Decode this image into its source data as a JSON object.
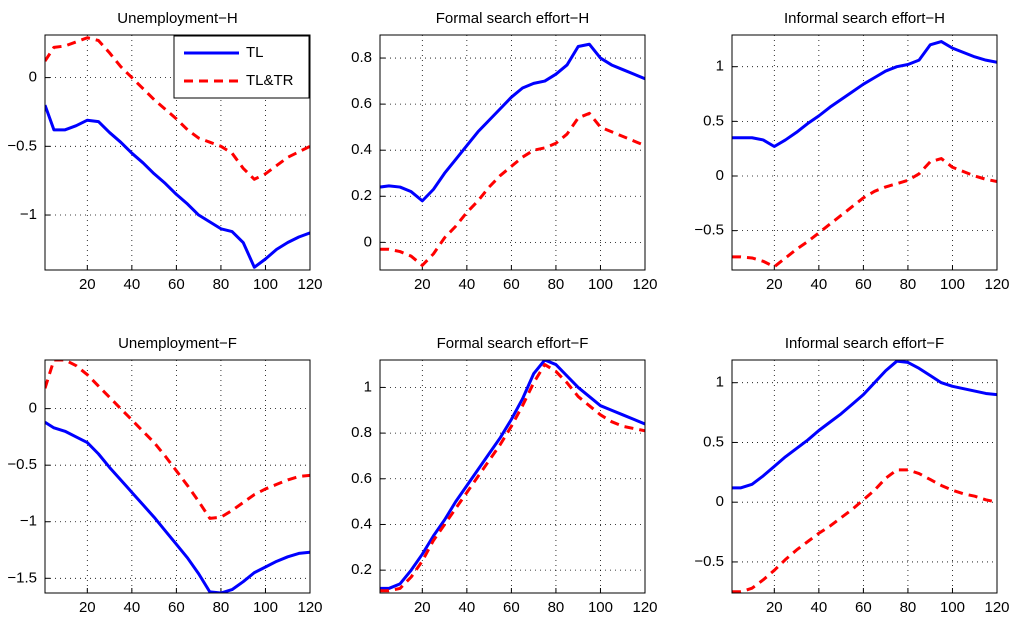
{
  "chart_data": [
    {
      "type": "line",
      "title": "Unemployment−H",
      "x": [
        1,
        5,
        10,
        15,
        20,
        25,
        30,
        35,
        40,
        45,
        50,
        55,
        60,
        65,
        70,
        75,
        80,
        85,
        90,
        95,
        100,
        105,
        110,
        115,
        120
      ],
      "series": [
        {
          "name": "TL",
          "color": "#0000ff",
          "linestyle": "solid",
          "values": [
            -0.2,
            -0.38,
            -0.38,
            -0.35,
            -0.31,
            -0.32,
            -0.4,
            -0.47,
            -0.55,
            -0.62,
            -0.7,
            -0.77,
            -0.85,
            -0.92,
            -1.0,
            -1.05,
            -1.1,
            -1.12,
            -1.2,
            -1.38,
            -1.32,
            -1.25,
            -1.2,
            -1.16,
            -1.13
          ]
        },
        {
          "name": "TL&TR",
          "color": "#ff0000",
          "linestyle": "dashed",
          "values": [
            0.12,
            0.22,
            0.23,
            0.26,
            0.29,
            0.27,
            0.18,
            0.08,
            0.0,
            -0.08,
            -0.16,
            -0.23,
            -0.3,
            -0.38,
            -0.44,
            -0.47,
            -0.5,
            -0.55,
            -0.66,
            -0.74,
            -0.7,
            -0.64,
            -0.58,
            -0.54,
            -0.5
          ]
        }
      ],
      "xlim": [
        1,
        120
      ],
      "xticks": [
        20,
        40,
        60,
        80,
        100,
        120
      ],
      "ylim": [
        -1.4,
        0.31
      ],
      "yticks": [
        {
          "value": -1,
          "label": "−1"
        },
        {
          "value": -0.5,
          "label": "−0.5"
        },
        0
      ],
      "grid": true,
      "legend": "northeast"
    },
    {
      "type": "line",
      "title": "Formal search effort−H",
      "x": [
        1,
        5,
        10,
        15,
        20,
        25,
        30,
        35,
        40,
        45,
        50,
        55,
        60,
        65,
        70,
        75,
        80,
        85,
        90,
        95,
        100,
        105,
        110,
        115,
        120
      ],
      "series": [
        {
          "name": "TL",
          "color": "#0000ff",
          "linestyle": "solid",
          "values": [
            0.24,
            0.245,
            0.24,
            0.22,
            0.18,
            0.23,
            0.3,
            0.36,
            0.42,
            0.48,
            0.53,
            0.58,
            0.63,
            0.67,
            0.69,
            0.7,
            0.73,
            0.77,
            0.85,
            0.86,
            0.8,
            0.77,
            0.75,
            0.73,
            0.71
          ]
        },
        {
          "name": "TL&TR",
          "color": "#ff0000",
          "linestyle": "dashed",
          "values": [
            -0.03,
            -0.03,
            -0.04,
            -0.06,
            -0.1,
            -0.05,
            0.02,
            0.07,
            0.13,
            0.18,
            0.24,
            0.29,
            0.33,
            0.37,
            0.4,
            0.41,
            0.43,
            0.47,
            0.54,
            0.56,
            0.5,
            0.48,
            0.46,
            0.44,
            0.42
          ]
        }
      ],
      "xlim": [
        1,
        120
      ],
      "xticks": [
        20,
        40,
        60,
        80,
        100,
        120
      ],
      "ylim": [
        -0.12,
        0.9
      ],
      "yticks": [
        0,
        0.2,
        0.4,
        0.6,
        0.8
      ],
      "grid": true
    },
    {
      "type": "line",
      "title": "Informal search effort−H",
      "x": [
        1,
        5,
        10,
        15,
        20,
        25,
        30,
        35,
        40,
        45,
        50,
        55,
        60,
        65,
        70,
        75,
        80,
        85,
        90,
        95,
        100,
        105,
        110,
        115,
        120
      ],
      "series": [
        {
          "name": "TL",
          "color": "#0000ff",
          "linestyle": "solid",
          "values": [
            0.35,
            0.35,
            0.35,
            0.33,
            0.27,
            0.33,
            0.4,
            0.48,
            0.55,
            0.63,
            0.7,
            0.77,
            0.84,
            0.9,
            0.96,
            1.0,
            1.02,
            1.06,
            1.2,
            1.23,
            1.17,
            1.13,
            1.09,
            1.06,
            1.04
          ]
        },
        {
          "name": "TL&TR",
          "color": "#ff0000",
          "linestyle": "dashed",
          "values": [
            -0.74,
            -0.74,
            -0.75,
            -0.78,
            -0.83,
            -0.75,
            -0.67,
            -0.6,
            -0.52,
            -0.44,
            -0.36,
            -0.28,
            -0.2,
            -0.14,
            -0.1,
            -0.07,
            -0.04,
            0.02,
            0.13,
            0.16,
            0.08,
            0.04,
            0.0,
            -0.03,
            -0.05
          ]
        }
      ],
      "xlim": [
        1,
        120
      ],
      "xticks": [
        20,
        40,
        60,
        80,
        100,
        120
      ],
      "ylim": [
        -0.86,
        1.29
      ],
      "yticks": [
        {
          "value": -0.5,
          "label": "−0.5"
        },
        0,
        0.5,
        1
      ],
      "grid": true
    },
    {
      "type": "line",
      "title": "Unemployment−F",
      "x": [
        1,
        5,
        10,
        15,
        20,
        25,
        30,
        35,
        40,
        45,
        50,
        55,
        60,
        65,
        70,
        75,
        80,
        85,
        90,
        95,
        100,
        105,
        110,
        115,
        120
      ],
      "series": [
        {
          "name": "TL",
          "color": "#0000ff",
          "linestyle": "solid",
          "values": [
            -0.12,
            -0.17,
            -0.2,
            -0.25,
            -0.3,
            -0.4,
            -0.52,
            -0.63,
            -0.74,
            -0.85,
            -0.96,
            -1.08,
            -1.2,
            -1.32,
            -1.46,
            -1.62,
            -1.63,
            -1.6,
            -1.53,
            -1.45,
            -1.4,
            -1.35,
            -1.31,
            -1.28,
            -1.27
          ]
        },
        {
          "name": "TL&TR",
          "color": "#ff0000",
          "linestyle": "dashed",
          "values": [
            0.18,
            0.43,
            0.43,
            0.38,
            0.3,
            0.2,
            0.1,
            0.0,
            -0.1,
            -0.2,
            -0.3,
            -0.42,
            -0.55,
            -0.68,
            -0.82,
            -0.97,
            -0.96,
            -0.9,
            -0.83,
            -0.76,
            -0.71,
            -0.67,
            -0.63,
            -0.6,
            -0.59
          ]
        }
      ],
      "xlim": [
        1,
        120
      ],
      "xticks": [
        20,
        40,
        60,
        80,
        100,
        120
      ],
      "ylim": [
        -1.63,
        0.43
      ],
      "yticks": [
        {
          "value": -1.5,
          "label": "−1.5"
        },
        {
          "value": -1,
          "label": "−1"
        },
        {
          "value": -0.5,
          "label": "−0.5"
        },
        0
      ],
      "grid": true
    },
    {
      "type": "line",
      "title": "Formal search effort−F",
      "x": [
        1,
        5,
        10,
        15,
        20,
        25,
        30,
        35,
        40,
        45,
        50,
        55,
        60,
        65,
        70,
        75,
        80,
        85,
        90,
        95,
        100,
        105,
        110,
        115,
        120
      ],
      "series": [
        {
          "name": "TL",
          "color": "#0000ff",
          "linestyle": "solid",
          "values": [
            0.12,
            0.12,
            0.14,
            0.2,
            0.27,
            0.35,
            0.42,
            0.5,
            0.57,
            0.64,
            0.71,
            0.78,
            0.86,
            0.95,
            1.06,
            1.12,
            1.1,
            1.05,
            1.0,
            0.96,
            0.92,
            0.9,
            0.88,
            0.86,
            0.84
          ]
        },
        {
          "name": "TL&TR",
          "color": "#ff0000",
          "linestyle": "dashed",
          "values": [
            0.11,
            0.11,
            0.12,
            0.17,
            0.24,
            0.33,
            0.4,
            0.47,
            0.54,
            0.61,
            0.68,
            0.75,
            0.83,
            0.92,
            1.02,
            1.1,
            1.07,
            1.02,
            0.96,
            0.92,
            0.88,
            0.85,
            0.83,
            0.82,
            0.81
          ]
        }
      ],
      "xlim": [
        1,
        120
      ],
      "xticks": [
        20,
        40,
        60,
        80,
        100,
        120
      ],
      "ylim": [
        0.1,
        1.12
      ],
      "yticks": [
        0.2,
        0.4,
        0.6,
        0.8,
        1
      ],
      "grid": true
    },
    {
      "type": "line",
      "title": "Informal search effort−F",
      "x": [
        1,
        5,
        10,
        15,
        20,
        25,
        30,
        35,
        40,
        45,
        50,
        55,
        60,
        65,
        70,
        75,
        80,
        85,
        90,
        95,
        100,
        105,
        110,
        115,
        120
      ],
      "series": [
        {
          "name": "TL",
          "color": "#0000ff",
          "linestyle": "solid",
          "values": [
            0.12,
            0.12,
            0.15,
            0.22,
            0.3,
            0.38,
            0.45,
            0.52,
            0.6,
            0.67,
            0.74,
            0.82,
            0.9,
            1.0,
            1.1,
            1.18,
            1.17,
            1.12,
            1.06,
            1.0,
            0.97,
            0.95,
            0.93,
            0.91,
            0.9
          ]
        },
        {
          "name": "TL&TR",
          "color": "#ff0000",
          "linestyle": "dashed",
          "values": [
            -0.75,
            -0.75,
            -0.72,
            -0.65,
            -0.57,
            -0.48,
            -0.4,
            -0.33,
            -0.26,
            -0.2,
            -0.13,
            -0.06,
            0.02,
            0.1,
            0.2,
            0.27,
            0.27,
            0.24,
            0.19,
            0.14,
            0.1,
            0.07,
            0.05,
            0.02,
            0.0
          ]
        }
      ],
      "xlim": [
        1,
        120
      ],
      "xticks": [
        20,
        40,
        60,
        80,
        100,
        120
      ],
      "ylim": [
        -0.76,
        1.19
      ],
      "yticks": [
        {
          "value": -0.5,
          "label": "−0.5"
        },
        0,
        0.5,
        1
      ],
      "grid": true
    }
  ]
}
